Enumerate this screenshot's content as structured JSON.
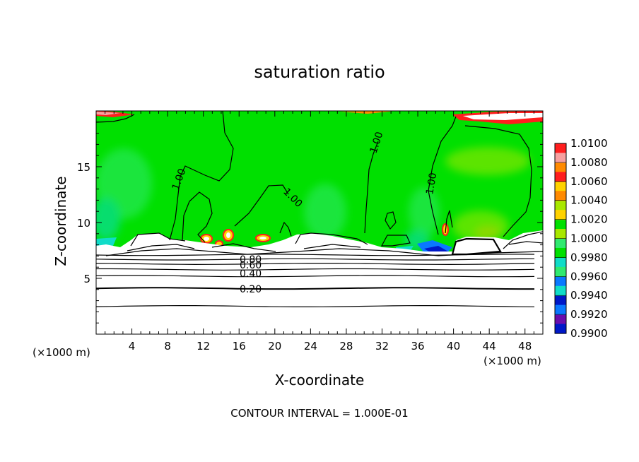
{
  "chart_data": {
    "type": "heatmap",
    "title": "saturation ratio",
    "xlabel": "X-coordinate",
    "ylabel": "Z-coordinate",
    "x_unit": "(×1000 m)",
    "xlim": [
      0,
      50
    ],
    "ylim": [
      0,
      20
    ],
    "x_ticks": [
      4,
      8,
      12,
      16,
      20,
      24,
      28,
      32,
      36,
      40,
      44,
      48
    ],
    "y_ticks": [
      5,
      10,
      15
    ],
    "colorbar": {
      "levels": [
        0.99,
        0.992,
        0.994,
        0.996,
        0.998,
        1.0,
        1.002,
        1.004,
        1.006,
        1.008,
        1.01
      ],
      "labels": [
        "0.9900",
        "0.9920",
        "0.9940",
        "0.9960",
        "0.9980",
        "1.0000",
        "1.0020",
        "1.0040",
        "1.0060",
        "1.0080",
        "1.0100"
      ],
      "colors": [
        "#6a0dad",
        "#0018c8",
        "#0a78ff",
        "#10dcc8",
        "#30ea70",
        "#00e000",
        "#a8e800",
        "#ffd200",
        "#ff8a00",
        "#ff1e1e",
        "#f7a0a0"
      ]
    },
    "contour_labels": [
      "1.00",
      "1.00",
      "1.00",
      "1.00",
      "0.80",
      "0.60",
      "0.40",
      "0.20"
    ],
    "contour_interval_text": "CONTOUR INTERVAL = 1.000E-01",
    "dominant_value_above_z8": 1.0,
    "subsaturated_layers_z": [
      2.5,
      4.1,
      5.2,
      5.8,
      6.3,
      6.7,
      7.1
    ],
    "subsaturated_layer_values": [
      0.1,
      0.2,
      0.3,
      0.4,
      0.5,
      0.6,
      0.7
    ]
  }
}
